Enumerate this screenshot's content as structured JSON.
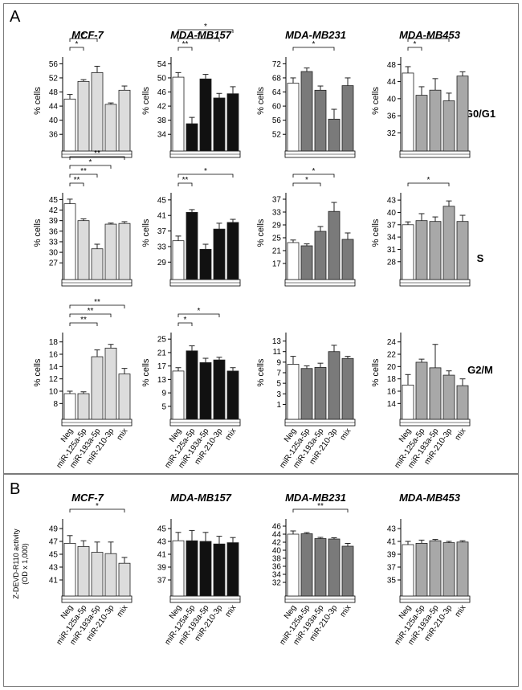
{
  "panel_a_letter": "A",
  "panel_b_letter": "B",
  "x_categories": [
    "Neg",
    "miR-125a-5p",
    "miR-193a-5p",
    "miR-210-3p",
    "mix"
  ],
  "a_row_labels": [
    "G0/G1",
    "S",
    "G2/M"
  ],
  "a_ylabel": "% cells",
  "b_ylabel_line1": "Z-DEVD-R110 activity",
  "b_ylabel_line2": "(OD x 1,000)",
  "cell_lines": [
    "MCF-7",
    "MDA-MB157",
    "MDA-MB231",
    "MDA-MB453"
  ],
  "colors": {
    "neg": "#ffffff",
    "MCF-7": "#dcdcdc",
    "MDA-MB157": "#111111",
    "MDA-MB231": "#7a7a7a",
    "MDA-MB453": "#a8a8a8"
  },
  "chart_data": [
    {
      "type": "bar",
      "panel": "A",
      "row": "G0/G1",
      "line": "MCF-7",
      "yticks": [
        36,
        40,
        44,
        48,
        52,
        56
      ],
      "ylim": [
        34,
        57
      ],
      "values": [
        46,
        51,
        53.5,
        44.5,
        48.5
      ],
      "errors": [
        1.3,
        0.5,
        1.8,
        0.4,
        1.2
      ],
      "sig": [
        {
          "i": 0,
          "j": 1,
          "label": "*"
        },
        {
          "i": 0,
          "j": 2,
          "label": "*"
        }
      ]
    },
    {
      "type": "bar",
      "panel": "A",
      "row": "G0/G1",
      "line": "MDA-MB157",
      "yticks": [
        34,
        38,
        42,
        46,
        50,
        54
      ],
      "ylim": [
        32,
        55
      ],
      "values": [
        50.2,
        37,
        49.7,
        44.3,
        45.5
      ],
      "errors": [
        1.3,
        1.8,
        1.3,
        1.3,
        2
      ],
      "sig": [
        {
          "i": 0,
          "j": 1,
          "label": "**"
        },
        {
          "i": 0,
          "j": 3,
          "label": "*"
        },
        {
          "i": 0,
          "j": 4,
          "label": "*"
        }
      ]
    },
    {
      "type": "bar",
      "panel": "A",
      "row": "G0/G1",
      "line": "MDA-MB231",
      "yticks": [
        52,
        56,
        60,
        64,
        68,
        72
      ],
      "ylim": [
        50,
        73
      ],
      "values": [
        66.5,
        69.8,
        64.5,
        56.3,
        65.8
      ],
      "errors": [
        1.5,
        1,
        1.2,
        2.8,
        2.2
      ],
      "sig": [
        {
          "i": 0,
          "j": 3,
          "label": "*"
        }
      ]
    },
    {
      "type": "bar",
      "panel": "A",
      "row": "G0/G1",
      "line": "MDA-MB453",
      "yticks": [
        32,
        36,
        40,
        44,
        48
      ],
      "ylim": [
        30,
        49
      ],
      "values": [
        46,
        40.8,
        42,
        39.5,
        45.3
      ],
      "errors": [
        1.5,
        2,
        2.7,
        1.8,
        1
      ],
      "sig": [
        {
          "i": 0,
          "j": 1,
          "label": "*"
        },
        {
          "i": 0,
          "j": 3,
          "label": "*"
        }
      ]
    },
    {
      "type": "bar",
      "panel": "A",
      "row": "S",
      "line": "MCF-7",
      "yticks": [
        27,
        30,
        33,
        36,
        39,
        42,
        45
      ],
      "ylim": [
        25,
        46
      ],
      "values": [
        43.8,
        39,
        31,
        38,
        38.2
      ],
      "errors": [
        1.3,
        0.5,
        1.3,
        0.3,
        0.5
      ],
      "sig": [
        {
          "i": 0,
          "j": 1,
          "label": "**"
        },
        {
          "i": 0,
          "j": 2,
          "label": "**"
        },
        {
          "i": 0,
          "j": 3,
          "label": "*"
        },
        {
          "i": 0,
          "j": 4,
          "label": "**"
        }
      ]
    },
    {
      "type": "bar",
      "panel": "A",
      "row": "S",
      "line": "MDA-MB157",
      "yticks": [
        29,
        33,
        37,
        41,
        45
      ],
      "ylim": [
        27,
        46
      ],
      "values": [
        34.5,
        41.8,
        32.3,
        37.5,
        39.2
      ],
      "errors": [
        1.2,
        0.7,
        1.3,
        1.5,
        0.8
      ],
      "sig": [
        {
          "i": 0,
          "j": 1,
          "label": "**"
        },
        {
          "i": 0,
          "j": 4,
          "label": "*"
        }
      ]
    },
    {
      "type": "bar",
      "panel": "A",
      "row": "S",
      "line": "MDA-MB231",
      "yticks": [
        17,
        21,
        25,
        29,
        33,
        37
      ],
      "ylim": [
        15,
        38
      ],
      "values": [
        23.5,
        22.5,
        27,
        33.2,
        24.5
      ],
      "errors": [
        0.8,
        0.6,
        1.5,
        2.8,
        2
      ],
      "sig": [
        {
          "i": 0,
          "j": 2,
          "label": "*"
        },
        {
          "i": 0,
          "j": 3,
          "label": "*"
        }
      ]
    },
    {
      "type": "bar",
      "panel": "A",
      "row": "S",
      "line": "MDA-MB453",
      "yticks": [
        28,
        31,
        34,
        37,
        40,
        43
      ],
      "ylim": [
        26,
        44
      ],
      "values": [
        37,
        38,
        37.8,
        41.5,
        37.8
      ],
      "errors": [
        0.7,
        1.7,
        1.1,
        1.3,
        1.5
      ],
      "sig": [
        {
          "i": 0,
          "j": 3,
          "label": "*"
        }
      ]
    },
    {
      "type": "bar",
      "panel": "A",
      "row": "G2/M",
      "line": "MCF-7",
      "yticks": [
        8,
        10,
        12,
        14,
        16,
        18
      ],
      "ylim": [
        7,
        19
      ],
      "values": [
        9.6,
        9.6,
        15.6,
        17,
        12.8
      ],
      "errors": [
        0.4,
        0.3,
        1.1,
        0.6,
        0.9
      ],
      "sig": [
        {
          "i": 0,
          "j": 2,
          "label": "**"
        },
        {
          "i": 0,
          "j": 3,
          "label": "**"
        },
        {
          "i": 0,
          "j": 4,
          "label": "**"
        }
      ]
    },
    {
      "type": "bar",
      "panel": "A",
      "row": "G2/M",
      "line": "MDA-MB157",
      "yticks": [
        5,
        9,
        13,
        17,
        21,
        25
      ],
      "ylim": [
        4,
        26
      ],
      "values": [
        15.5,
        21.5,
        18,
        18.8,
        15.5
      ],
      "errors": [
        1,
        1.5,
        1.3,
        0.8,
        1
      ],
      "sig": [
        {
          "i": 0,
          "j": 1,
          "label": "*"
        },
        {
          "i": 0,
          "j": 3,
          "label": "*"
        }
      ]
    },
    {
      "type": "bar",
      "panel": "A",
      "row": "G2/M",
      "line": "MDA-MB231",
      "yticks": [
        1,
        3,
        5,
        7,
        9,
        11,
        13
      ],
      "ylim": [
        0,
        14
      ],
      "values": [
        8.6,
        7.8,
        8,
        11,
        9.7
      ],
      "errors": [
        1.5,
        0.5,
        0.8,
        1.2,
        0.4
      ],
      "sig": []
    },
    {
      "type": "bar",
      "panel": "A",
      "row": "G2/M",
      "line": "MDA-MB453",
      "yticks": [
        14,
        16,
        18,
        20,
        22,
        24
      ],
      "ylim": [
        13,
        25
      ],
      "values": [
        17,
        20.7,
        19.8,
        18.6,
        16.9
      ],
      "errors": [
        1.7,
        0.5,
        3.8,
        0.7,
        1.1
      ],
      "sig": []
    },
    {
      "type": "bar",
      "panel": "B",
      "line": "MCF-7",
      "yticks": [
        41,
        43,
        45,
        47,
        49
      ],
      "ylim": [
        40,
        50
      ],
      "values": [
        46.7,
        46.2,
        45.3,
        45.1,
        43.6
      ],
      "errors": [
        1.2,
        0.9,
        1.6,
        1.8,
        0.9
      ],
      "sig": [
        {
          "i": 0,
          "j": 4,
          "label": "*"
        }
      ]
    },
    {
      "type": "bar",
      "panel": "B",
      "line": "MDA-MB157",
      "yticks": [
        37,
        39,
        41,
        43,
        45
      ],
      "ylim": [
        36,
        46
      ],
      "values": [
        43.1,
        43.1,
        43,
        42.6,
        42.8
      ],
      "errors": [
        1.3,
        1.6,
        1.4,
        1.2,
        0.8
      ],
      "sig": []
    },
    {
      "type": "bar",
      "panel": "B",
      "line": "MDA-MB231",
      "yticks": [
        32,
        34,
        36,
        38,
        40,
        42,
        44,
        46
      ],
      "ylim": [
        31,
        47
      ],
      "values": [
        44,
        44.1,
        42.9,
        42.8,
        41
      ],
      "errors": [
        0.8,
        0.3,
        0.3,
        0.3,
        0.7
      ],
      "sig": [
        {
          "i": 0,
          "j": 4,
          "label": "**"
        }
      ]
    },
    {
      "type": "bar",
      "panel": "B",
      "line": "MDA-MB453",
      "yticks": [
        35,
        37,
        39,
        41,
        43
      ],
      "ylim": [
        34,
        44
      ],
      "values": [
        40.5,
        40.7,
        41.1,
        40.8,
        40.9
      ],
      "errors": [
        0.5,
        0.5,
        0.2,
        0.2,
        0.2
      ],
      "sig": []
    }
  ]
}
